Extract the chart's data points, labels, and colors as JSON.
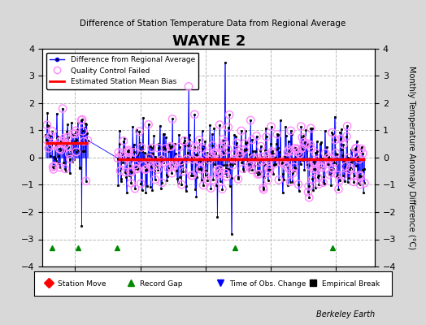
{
  "title": "WAYNE 2",
  "subtitle": "Difference of Station Temperature Data from Regional Average",
  "ylabel_right": "Monthly Temperature Anomaly Difference (°C)",
  "credit": "Berkeley Earth",
  "xlim": [
    1965,
    2016
  ],
  "ylim": [
    -4,
    4
  ],
  "xticks": [
    1970,
    1980,
    1990,
    2000,
    2010
  ],
  "bg_color": "#d8d8d8",
  "plot_bg_color": "#ffffff",
  "grid_color": "#b0b0b0",
  "line_color": "#0000ff",
  "bias_color": "#ff0000",
  "qc_color": "#ff88ff",
  "bias_segments": [
    {
      "start": 1965.5,
      "end": 1972.0,
      "bias": 0.55
    },
    {
      "start": 1976.5,
      "end": 1994.5,
      "bias": -0.07
    },
    {
      "start": 1994.5,
      "end": 2014.5,
      "bias": -0.05
    }
  ],
  "record_gap_x": [
    1966.5,
    1970.5,
    1976.4,
    1994.5,
    2009.5
  ],
  "time_segments": [
    {
      "start": 1965.5,
      "end": 1972.0
    },
    {
      "start": 1976.5,
      "end": 1994.5
    },
    {
      "start": 1994.5,
      "end": 2014.5
    }
  ]
}
